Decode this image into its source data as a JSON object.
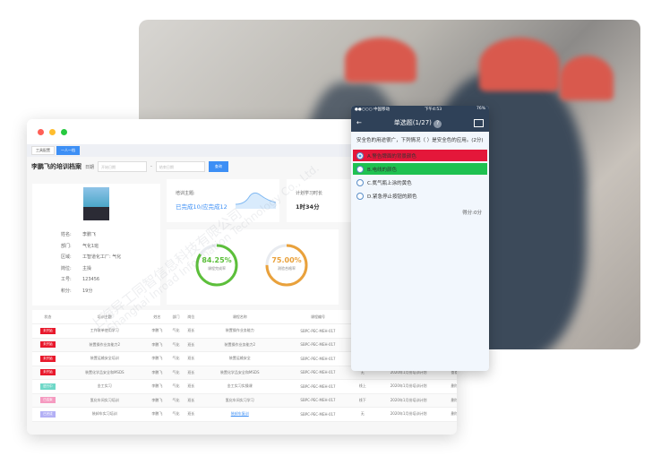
{
  "window": {
    "tabs": [
      "工具配置",
      "一人一档"
    ],
    "title": "李鹏飞的培训档案",
    "date_label": "日期",
    "start_placeholder": "开始日期",
    "end_placeholder": "结束日期",
    "separator": "-",
    "query_button": "查询"
  },
  "profile": {
    "rows": [
      [
        "姓名:",
        "李鹏飞"
      ],
      [
        "部门:",
        "气化1班"
      ],
      [
        "区域:",
        "工智道化工厂: 气化"
      ],
      [
        "岗位:",
        "主操"
      ],
      [
        "工号:",
        "123456"
      ],
      [
        "积分:",
        "19分"
      ]
    ]
  },
  "stats": {
    "topic_label": "培训主题:",
    "topic_value": "已完成10/应完成12",
    "hours_label": "计划学习时长",
    "hours_value": "1时34分"
  },
  "gauges": [
    {
      "value": "84.25%",
      "fraction": 0.8425,
      "label": "课程完成率",
      "color": "#5cbf3a"
    },
    {
      "value": "75.00%",
      "fraction": 0.75,
      "label": "测验合格率",
      "color": "#e9a13b"
    }
  ],
  "table": {
    "headers": [
      "状态",
      "培训主题",
      "姓名",
      "部门",
      "岗位",
      "课程名称",
      "课程编号",
      "形式",
      "培训计划",
      "操作"
    ],
    "rows": [
      {
        "status": "未开始",
        "status_color": "#e8192c",
        "cells": [
          "工作联单使用学习",
          "李鹏飞",
          "气化",
          "班长",
          "装置操作业务能力",
          "SBPC-PEC-MEH-017",
          "",
          "",
          ""
        ]
      },
      {
        "status": "未开始",
        "status_color": "#e8192c",
        "cells": [
          "装置操作业务能力2",
          "李鹏飞",
          "气化",
          "班长",
          "装置操作业务能力2",
          "SBPC-PEC-MEH-017",
          "",
          "",
          ""
        ]
      },
      {
        "status": "未开始",
        "status_color": "#e8192c",
        "cells": [
          "装置运输安全培训",
          "李鹏飞",
          "气化",
          "班长",
          "装置运输安全",
          "SBPC-PEC-MEH-017",
          "",
          "",
          ""
        ]
      },
      {
        "status": "未开始",
        "status_color": "#e8192c",
        "cells": [
          "装置化学品安全和MSDS",
          "李鹏飞",
          "气化",
          "班长",
          "装置化学品安全和MSDS",
          "SBPC-PEC-MEH-017",
          "无",
          "2020年1月份培训计划",
          "查看"
        ]
      },
      {
        "status": "进行中",
        "status_color": "#6fd8c8",
        "cells": [
          "金工实习",
          "李鹏飞",
          "气化",
          "班长",
          "金工实习实操课",
          "SBPC-PEC-MEH-017",
          "线上",
          "2020年1月份培训计划",
          "删除"
        ]
      },
      {
        "status": "已结束",
        "status_color": "#f59ac0",
        "cells": [
          "氢化车间实习培训",
          "李鹏飞",
          "气化",
          "班长",
          "氢化车间实习学习",
          "SBPC-PEC-MEH-017",
          "线下",
          "2020年1月份培训计划",
          "删除"
        ]
      },
      {
        "status": "已完成",
        "status_color": "#b3b0f5",
        "cells": [
          "装卸车实习培训",
          "李鹏飞",
          "气化",
          "班长",
          "装卸车复训",
          "SBPC-PEC-MEH-017",
          "无",
          "2020年1月份培训计划",
          "删除"
        ]
      }
    ]
  },
  "phone": {
    "carrier": "●●○○○ 中国移动",
    "time": "下午4:53",
    "battery": "76%",
    "nav_title": "单选题(1/27)",
    "question": "安全色的用途很广，下列情况（ ）是安全色的应用。(2分)",
    "options": [
      {
        "text": "A.警告牌面的背景颜色",
        "bg": "#e4173a"
      },
      {
        "text": "B.电线的颜色",
        "bg": "#1fc151"
      },
      {
        "text": "C.氮气瓶上涂的黄色",
        "bg": ""
      },
      {
        "text": "D.紧急停止按钮的颜色",
        "bg": ""
      }
    ],
    "score": "得分:0分"
  },
  "watermark": {
    "cn": "上海异工同智信息科技有限公司",
    "en": "Shanghai Inroad Information Technology Co., Ltd."
  }
}
